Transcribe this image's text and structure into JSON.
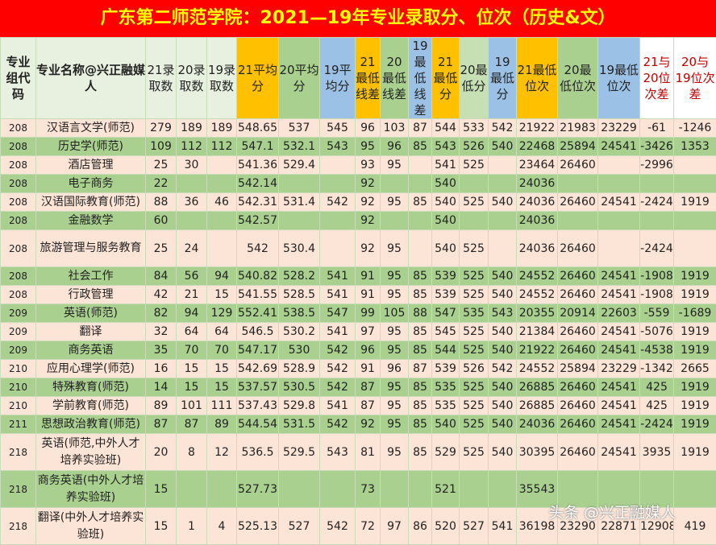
{
  "title": "广东第二师范学院：2021—19年专业录取分、位次（历史&文）",
  "headers": [
    "专业组代码",
    "专业名称@兴正融媒人",
    "21录取数",
    "20录取数",
    "19录取数",
    "21平均分",
    "20平均分",
    "19平均分",
    "21最低线差",
    "20最低线差",
    "19最低线差",
    "21最低分",
    "20最低分",
    "19最低分",
    "21最低位次",
    "20最低位次",
    "19最低位次",
    "21与20位次差",
    "20与19位次差"
  ],
  "header_colors": {
    "orange": "#ffc000",
    "green": "#a9d08e",
    "blue": "#9bc2e6",
    "light_green": "#c6e0b4"
  },
  "row_colors": {
    "pink": "#fce4d6",
    "green": "#a9d08e"
  },
  "rows": [
    [
      "208",
      "汉语言文学(师范)",
      "279",
      "189",
      "189",
      "548.65",
      "537",
      "545",
      "96",
      "103",
      "87",
      "544",
      "533",
      "542",
      "21922",
      "21983",
      "23229",
      "-61",
      "-1246"
    ],
    [
      "208",
      "历史学(师范)",
      "109",
      "112",
      "112",
      "547.1",
      "532.1",
      "543",
      "95",
      "96",
      "85",
      "543",
      "526",
      "540",
      "22468",
      "25894",
      "24541",
      "-3426",
      "1353"
    ],
    [
      "208",
      "酒店管理",
      "25",
      "30",
      "",
      "541.36",
      "529.4",
      "",
      "93",
      "95",
      "",
      "541",
      "525",
      "",
      "23464",
      "26460",
      "",
      "-2996",
      ""
    ],
    [
      "208",
      "电子商务",
      "22",
      "",
      "",
      "542.14",
      "",
      "",
      "92",
      "",
      "",
      "540",
      "",
      "",
      "24036",
      "",
      "",
      "",
      ""
    ],
    [
      "208",
      "汉语国际教育(师范)",
      "88",
      "36",
      "46",
      "542.31",
      "531.4",
      "542",
      "92",
      "95",
      "85",
      "540",
      "525",
      "540",
      "24036",
      "26460",
      "24541",
      "-2424",
      "1919"
    ],
    [
      "208",
      "金融数学",
      "60",
      "",
      "",
      "542.57",
      "",
      "",
      "92",
      "",
      "",
      "540",
      "",
      "",
      "24036",
      "",
      "",
      "",
      ""
    ],
    [
      "208",
      "旅游管理与服务教育",
      "25",
      "24",
      "",
      "542",
      "530.4",
      "",
      "92",
      "95",
      "",
      "540",
      "525",
      "",
      "24036",
      "26460",
      "",
      "-2424",
      ""
    ],
    [
      "208",
      "社会工作",
      "84",
      "56",
      "94",
      "540.82",
      "528.2",
      "541",
      "91",
      "95",
      "85",
      "539",
      "525",
      "540",
      "24552",
      "26460",
      "24541",
      "-1908",
      "1919"
    ],
    [
      "208",
      "行政管理",
      "42",
      "21",
      "15",
      "541.55",
      "528.5",
      "541",
      "91",
      "95",
      "85",
      "539",
      "525",
      "540",
      "24552",
      "26460",
      "24541",
      "-1908",
      "1919"
    ],
    [
      "209",
      "英语(师范)",
      "82",
      "94",
      "129",
      "552.41",
      "538.5",
      "547",
      "99",
      "105",
      "88",
      "547",
      "535",
      "543",
      "20355",
      "20914",
      "22603",
      "-559",
      "-1689"
    ],
    [
      "209",
      "翻译",
      "32",
      "64",
      "64",
      "546.5",
      "530.2",
      "541",
      "97",
      "95",
      "85",
      "545",
      "525",
      "540",
      "21384",
      "26460",
      "24541",
      "-5076",
      "1919"
    ],
    [
      "209",
      "商务英语",
      "35",
      "70",
      "70",
      "547.17",
      "530",
      "542",
      "96",
      "95",
      "85",
      "544",
      "525",
      "540",
      "21922",
      "26460",
      "24541",
      "-4538",
      "1919"
    ],
    [
      "210",
      "应用心理学(师范)",
      "16",
      "15",
      "15",
      "542.69",
      "528.9",
      "542",
      "91",
      "96",
      "87",
      "539",
      "526",
      "542",
      "24552",
      "25894",
      "23229",
      "-1342",
      "2665"
    ],
    [
      "210",
      "特殊教育(师范)",
      "14",
      "15",
      "15",
      "537.57",
      "530.5",
      "542",
      "87",
      "95",
      "85",
      "535",
      "525",
      "540",
      "26885",
      "26460",
      "24541",
      "425",
      "1919"
    ],
    [
      "210",
      "学前教育(师范)",
      "89",
      "101",
      "111",
      "537.43",
      "529.8",
      "541",
      "87",
      "95",
      "85",
      "535",
      "525",
      "540",
      "26885",
      "26460",
      "24541",
      "425",
      "1919"
    ],
    [
      "211",
      "思想政治教育(师范)",
      "87",
      "87",
      "89",
      "544.54",
      "531.5",
      "542",
      "92",
      "95",
      "85",
      "540",
      "525",
      "540",
      "24036",
      "26460",
      "24541",
      "-2424",
      "1919"
    ],
    [
      "218",
      "英语(师范,中外人才培养实验班)",
      "20",
      "8",
      "12",
      "536.5",
      "529.5",
      "543",
      "81",
      "95",
      "85",
      "529",
      "525",
      "540",
      "30395",
      "26460",
      "24541",
      "3935",
      "1919"
    ],
    [
      "218",
      "商务英语(中外人才培养实验班)",
      "15",
      "",
      "",
      "527.73",
      "",
      "",
      "73",
      "",
      "",
      "521",
      "",
      "",
      "35543",
      "",
      "",
      "",
      ""
    ],
    [
      "218",
      "翻译(中外人才培养实验班)",
      "15",
      "1",
      "4",
      "525.13",
      "527",
      "542",
      "72",
      "97",
      "86",
      "520",
      "527",
      "541",
      "36198",
      "23290",
      "22871",
      "12908",
      "419"
    ]
  ],
  "watermark": "头条 @兴正融媒人"
}
